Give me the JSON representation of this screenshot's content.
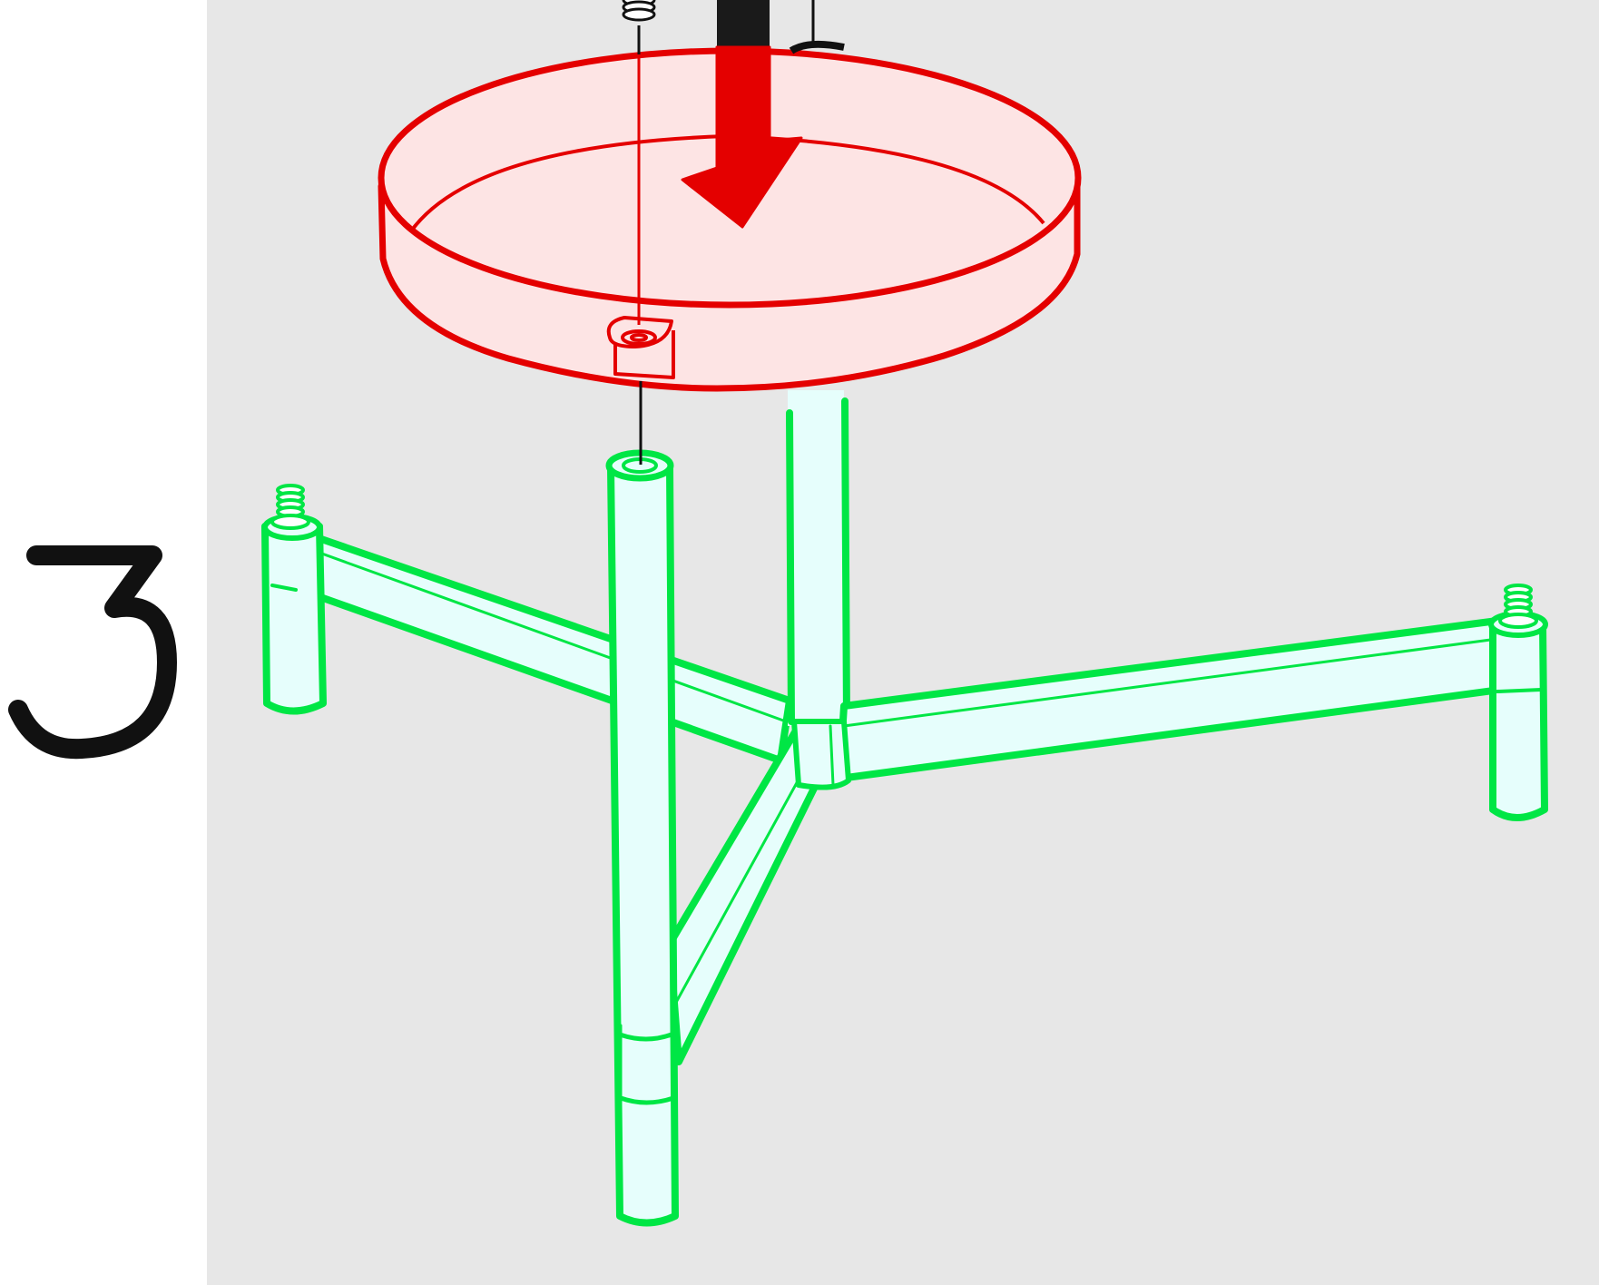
{
  "step": {
    "number": "3"
  },
  "colors": {
    "background_panel": "#e7e7e7",
    "seat_stroke": "#e40000",
    "seat_fill": "#fde4e4",
    "frame_stroke": "#00e645",
    "frame_fill": "#e6fefc",
    "arrow_red": "#e40000",
    "arrow_black": "#1a1a1a",
    "line_dark": "#111111"
  },
  "icons": {
    "step_number": "numeral-3-icon",
    "arrow": "down-arrow-icon",
    "seat": "round-seat-icon",
    "frame": "three-leg-stool-frame-icon",
    "screw": "threaded-screw-icon"
  }
}
